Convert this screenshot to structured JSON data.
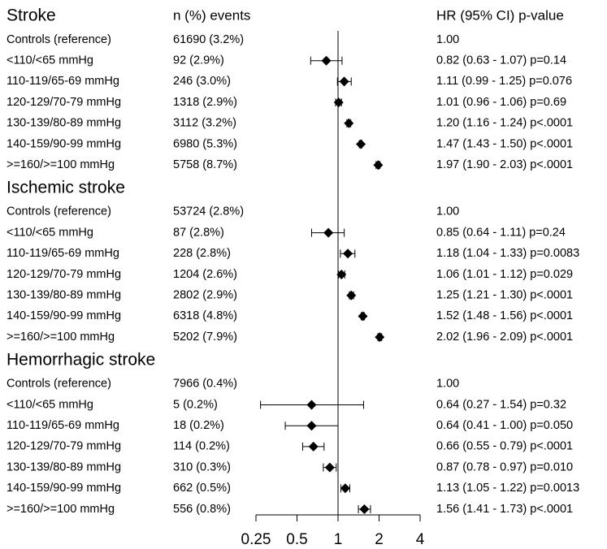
{
  "chart_data": {
    "type": "forest",
    "columns": {
      "events": "n (%) events",
      "result": "HR (95% CI) p-value"
    },
    "xlim": [
      0.25,
      4
    ],
    "xticks": [
      0.25,
      0.5,
      1,
      2,
      4
    ],
    "log_scale": true,
    "reference_line": 1,
    "color": "#000000",
    "groups": [
      {
        "title": "Stroke",
        "rows": [
          {
            "label": "Controls (reference)",
            "events": "61690 (3.2%)",
            "result": "1.00"
          },
          {
            "label": "<110/<65 mmHg",
            "events": "92 (2.9%)",
            "hr": 0.82,
            "lo": 0.63,
            "hi": 1.07,
            "result": "0.82 (0.63 - 1.07) p=0.14"
          },
          {
            "label": "110-119/65-69 mmHg",
            "events": "246 (3.0%)",
            "hr": 1.11,
            "lo": 0.99,
            "hi": 1.25,
            "result": "1.11 (0.99 - 1.25) p=0.076"
          },
          {
            "label": "120-129/70-79 mmHg",
            "events": "1318 (2.9%)",
            "hr": 1.01,
            "lo": 0.96,
            "hi": 1.06,
            "result": "1.01 (0.96 - 1.06) p=0.69"
          },
          {
            "label": "130-139/80-89 mmHg",
            "events": "3112 (3.2%)",
            "hr": 1.2,
            "lo": 1.16,
            "hi": 1.24,
            "result": "1.20 (1.16 - 1.24) p<.0001"
          },
          {
            "label": "140-159/90-99 mmHg",
            "events": "6980 (5.3%)",
            "hr": 1.47,
            "lo": 1.43,
            "hi": 1.5,
            "result": "1.47 (1.43 - 1.50) p<.0001"
          },
          {
            "label": ">=160/>=100 mmHg",
            "events": "5758 (8.7%)",
            "hr": 1.97,
            "lo": 1.9,
            "hi": 2.03,
            "result": "1.97 (1.90 - 2.03) p<.0001"
          }
        ]
      },
      {
        "title": "Ischemic stroke",
        "rows": [
          {
            "label": "Controls (reference)",
            "events": "53724 (2.8%)",
            "result": "1.00"
          },
          {
            "label": "<110/<65 mmHg",
            "events": "87 (2.8%)",
            "hr": 0.85,
            "lo": 0.64,
            "hi": 1.11,
            "result": "0.85 (0.64 - 1.11) p=0.24"
          },
          {
            "label": "110-119/65-69 mmHg",
            "events": "228 (2.8%)",
            "hr": 1.18,
            "lo": 1.04,
            "hi": 1.33,
            "result": "1.18 (1.04 - 1.33) p=0.0083"
          },
          {
            "label": "120-129/70-79 mmHg",
            "events": "1204 (2.6%)",
            "hr": 1.06,
            "lo": 1.01,
            "hi": 1.12,
            "result": "1.06 (1.01 - 1.12) p=0.029"
          },
          {
            "label": "130-139/80-89 mmHg",
            "events": "2802 (2.9%)",
            "hr": 1.25,
            "lo": 1.21,
            "hi": 1.3,
            "result": "1.25 (1.21 - 1.30) p<.0001"
          },
          {
            "label": "140-159/90-99 mmHg",
            "events": "6318 (4.8%)",
            "hr": 1.52,
            "lo": 1.48,
            "hi": 1.56,
            "result": "1.52 (1.48 - 1.56) p<.0001"
          },
          {
            "label": ">=160/>=100 mmHg",
            "events": "5202 (7.9%)",
            "hr": 2.02,
            "lo": 1.96,
            "hi": 2.09,
            "result": "2.02 (1.96 - 2.09) p<.0001"
          }
        ]
      },
      {
        "title": "Hemorrhagic stroke",
        "rows": [
          {
            "label": "Controls (reference)",
            "events": "7966 (0.4%)",
            "result": "1.00"
          },
          {
            "label": "<110/<65 mmHg",
            "events": "5 (0.2%)",
            "hr": 0.64,
            "lo": 0.27,
            "hi": 1.54,
            "result": "0.64 (0.27 - 1.54) p=0.32"
          },
          {
            "label": "110-119/65-69 mmHg",
            "events": "18 (0.2%)",
            "hr": 0.64,
            "lo": 0.41,
            "hi": 1.0,
            "result": "0.64 (0.41 - 1.00) p=0.050"
          },
          {
            "label": "120-129/70-79 mmHg",
            "events": "114 (0.2%)",
            "hr": 0.66,
            "lo": 0.55,
            "hi": 0.79,
            "result": "0.66 (0.55 - 0.79) p<.0001"
          },
          {
            "label": "130-139/80-89 mmHg",
            "events": "310 (0.3%)",
            "hr": 0.87,
            "lo": 0.78,
            "hi": 0.97,
            "result": "0.87 (0.78 - 0.97) p=0.010"
          },
          {
            "label": "140-159/90-99 mmHg",
            "events": "662 (0.5%)",
            "hr": 1.13,
            "lo": 1.05,
            "hi": 1.22,
            "result": "1.13 (1.05 - 1.22) p=0.0013"
          },
          {
            "label": ">=160/>=100 mmHg",
            "events": "556 (0.8%)",
            "hr": 1.56,
            "lo": 1.41,
            "hi": 1.73,
            "result": "1.56 (1.41 - 1.73) p<.0001"
          }
        ]
      }
    ]
  }
}
